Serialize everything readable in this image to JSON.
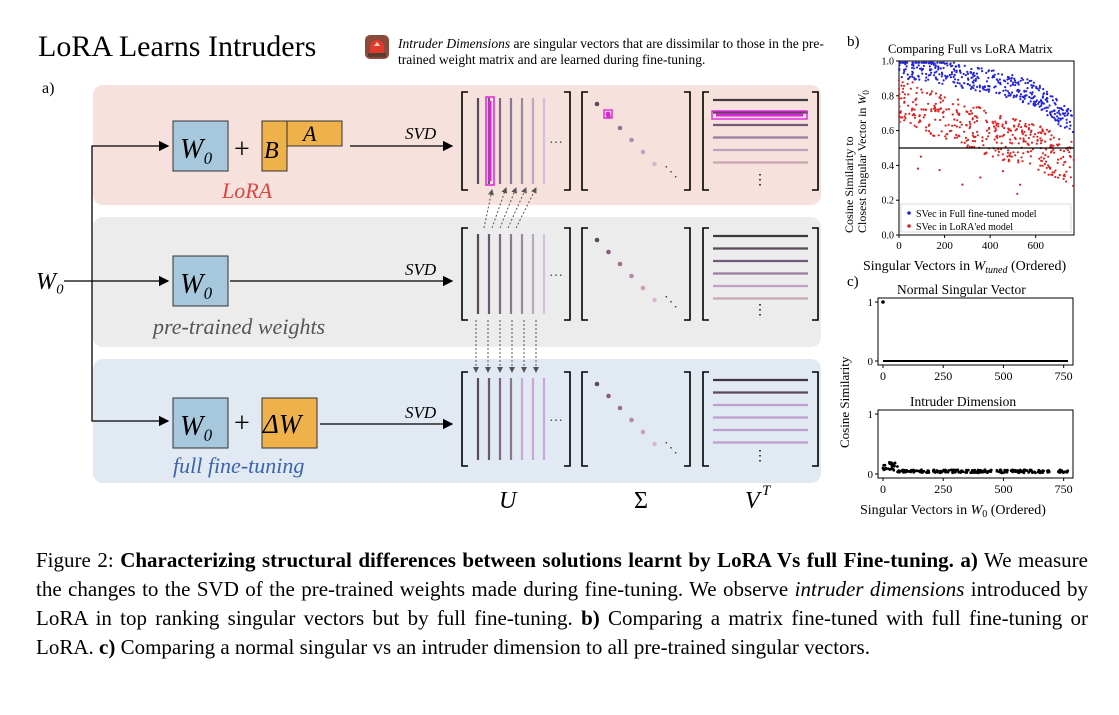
{
  "header": {
    "title": "LoRA Learns Intruders",
    "note_term": "Intruder Dimensions",
    "note_rest": " are singular vectors that are dissimilar to those in the pre-trained weight matrix and are learned during fine-tuning."
  },
  "panel_a": {
    "label": "a)",
    "input_label": "W₀",
    "svd_label": "SVD",
    "w0": "W₀",
    "plus": "+",
    "lora_b": "B",
    "lora_a": "A",
    "delta_w": "ΔW",
    "ellipsis_h": "···",
    "ellipsis_v": "⋮",
    "rows": [
      {
        "caption": "LoRA",
        "caption_color": "#d9473f",
        "bg": "#f7e1dd"
      },
      {
        "caption": "pre-trained weights",
        "caption_color": "#555555",
        "bg": "#ececec"
      },
      {
        "caption": "full fine-tuning",
        "caption_color": "#3b64ad",
        "bg": "#e1e9f2"
      }
    ],
    "bottom_labels": {
      "u": "U",
      "sigma": "Σ",
      "vt": "V",
      "vt_sup": "T"
    }
  },
  "chart_data": [
    {
      "panel": "b)",
      "type": "scatter",
      "title": "Comparing Full vs LoRA Matrix",
      "xlabel": "Singular Vectors in W_tuned (Ordered)",
      "ylabel": "Cosine Similarity to Closest Singular Vector in W₀",
      "xlim": [
        0,
        768
      ],
      "ylim": [
        0,
        1.0
      ],
      "xticks": [
        "0",
        "200",
        "400",
        "600"
      ],
      "yticks": [
        "0.0",
        "0.2",
        "0.4",
        "0.6",
        "0.8",
        "1.0"
      ],
      "reference_line_y": 0.5,
      "legend_position": "lower-left",
      "series": [
        {
          "name": "SVec in Full fine-tuned model",
          "color": "#2222dd",
          "trend_y": [
            [
              0,
              0.97
            ],
            [
              150,
              0.95
            ],
            [
              300,
              0.91
            ],
            [
              450,
              0.87
            ],
            [
              600,
              0.81
            ],
            [
              768,
              0.63
            ]
          ]
        },
        {
          "name": "SVec in LoRA'ed model",
          "color": "#dd2222",
          "trend_y": [
            [
              0,
              0.78
            ],
            [
              150,
              0.7
            ],
            [
              300,
              0.63
            ],
            [
              450,
              0.56
            ],
            [
              600,
              0.51
            ],
            [
              768,
              0.4
            ]
          ]
        }
      ]
    },
    {
      "panel": "c)",
      "type": "scatter",
      "title": "Normal Singular Vector",
      "xlim": [
        0,
        768
      ],
      "ylim": [
        0,
        1
      ],
      "xticks": [
        "0",
        "250",
        "500",
        "750"
      ],
      "yticks": [
        "0",
        "1"
      ],
      "points": [
        [
          0,
          1.0
        ]
      ],
      "baseline_y": 0.0
    },
    {
      "panel": "c)",
      "type": "scatter",
      "title": "Intruder Dimension",
      "xlabel": "Singular Vectors in W₀ (Ordered)",
      "ylabel": "Cosine Similarity",
      "xlim": [
        0,
        768
      ],
      "ylim": [
        0,
        1
      ],
      "xticks": [
        "0",
        "250",
        "500",
        "750"
      ],
      "yticks": [
        "0",
        "1"
      ],
      "max_value": 0.2,
      "typical_value": 0.05
    }
  ],
  "caption": {
    "prefix": "Figure 2: ",
    "bold_title": "Characterizing structural differences between solutions learnt by LoRA Vs full Fine-tuning.",
    "a_label": "a)",
    "a_text": " We measure the changes to the SVD of the pre-trained weights made during fine-tuning. We observe ",
    "a_italic": "intruder dimensions",
    "a_text2": " introduced by LoRA in top ranking singular vectors but by full fine-tuning. ",
    "b_label": "b)",
    "b_text": " Comparing a matrix fine-tuned with full fine-tuning or LoRA. ",
    "c_label": "c)",
    "c_text": " Comparing a normal singular vs an intruder dimension to all pre-trained singular vectors."
  }
}
